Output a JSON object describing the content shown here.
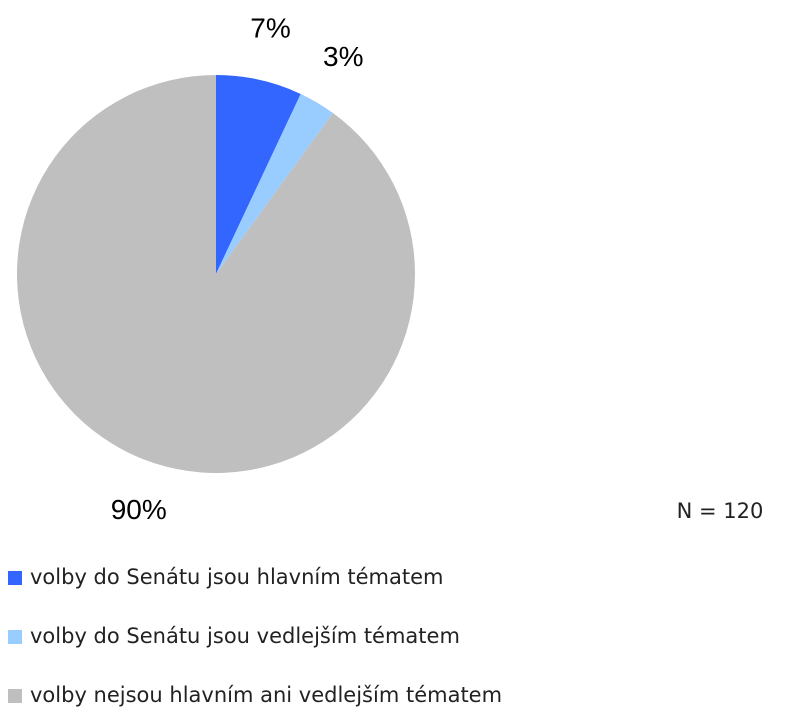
{
  "chart_data": {
    "type": "pie",
    "categories": [
      "volby do Senátu jsou hlavním tématem",
      "volby do Senátu jsou vedlejším tématem",
      "volby nejsou hlavním ani vedlejším tématem"
    ],
    "values": [
      7,
      3,
      90
    ],
    "value_labels": [
      "7%",
      "3%",
      "90%"
    ],
    "colors": [
      "#3366ff",
      "#99ccff",
      "#bfbfbf"
    ],
    "annotation": "N = 120",
    "legend": "bottom-left"
  }
}
